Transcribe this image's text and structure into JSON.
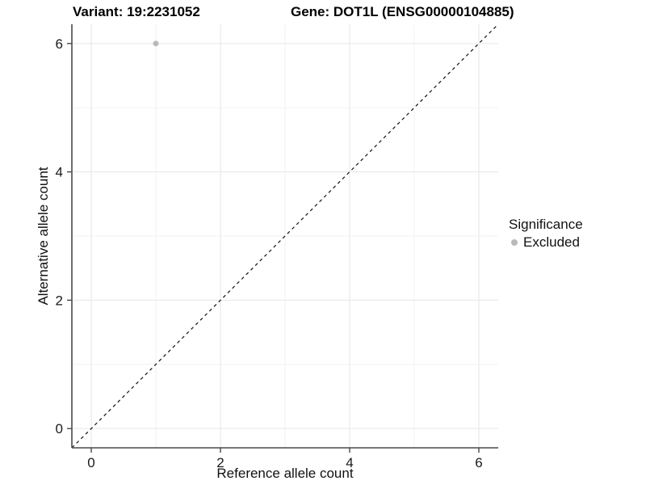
{
  "title": {
    "variant": "Variant: 19:2231052",
    "gene": "Gene: DOT1L (ENSG00000104885)"
  },
  "axis": {
    "x_label": "Reference allele count",
    "y_label": "Alternative allele count"
  },
  "legend": {
    "title": "Significance",
    "items": [
      {
        "label": "Excluded",
        "color": "#b9b9b9"
      }
    ]
  },
  "chart_data": {
    "type": "scatter",
    "title": "Variant: 19:2231052    Gene: DOT1L (ENSG00000104885)",
    "xlabel": "Reference allele count",
    "ylabel": "Alternative allele count",
    "xlim": [
      -0.3,
      6.3
    ],
    "ylim": [
      -0.3,
      6.3
    ],
    "major_ticks": [
      0,
      2,
      4,
      6
    ],
    "minor_gridlines": [
      1,
      3,
      5
    ],
    "grid": true,
    "legend_position": "right",
    "series": [
      {
        "name": "Excluded",
        "color": "#b9b9b9",
        "points": [
          {
            "x": 1,
            "y": 6
          }
        ]
      }
    ],
    "reference_line": {
      "type": "y=x",
      "style": "dashed",
      "color": "#111111"
    }
  },
  "colors": {
    "background": "#ffffff",
    "axis_line": "#4a4a4a",
    "grid_major": "#e6e6e6",
    "grid_minor": "#f2f2f2",
    "tick_text": "#1a1a1a",
    "point": "#b9b9b9"
  }
}
